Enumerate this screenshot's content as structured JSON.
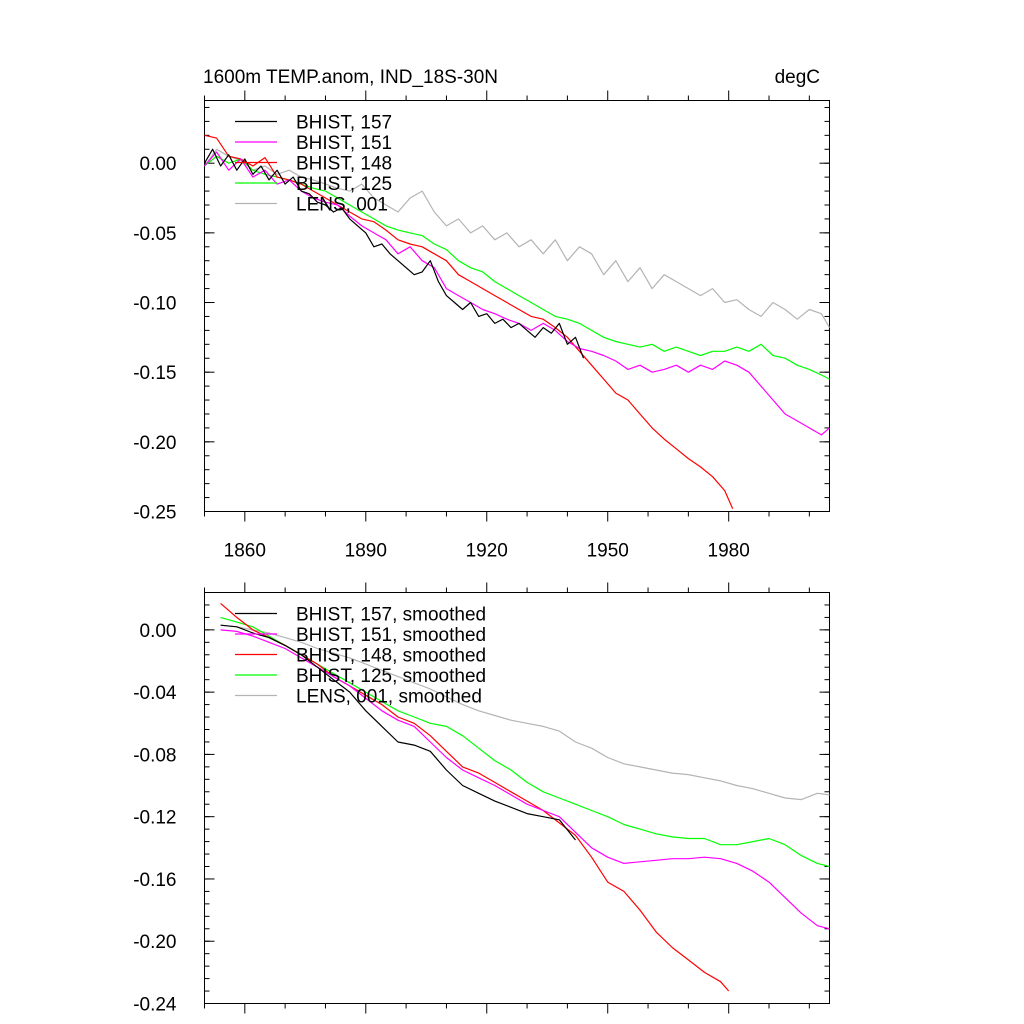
{
  "chart_data": [
    {
      "type": "line",
      "title": "1600m TEMP.anom, IND_18S-30N",
      "units": "degC",
      "xlim": [
        1850,
        2005
      ],
      "ylim": [
        -0.25,
        0.045
      ],
      "xticks": [
        1860,
        1890,
        1920,
        1950,
        1980
      ],
      "xtick_labels": [
        "1860",
        "1890",
        "1920",
        "1950",
        "1980"
      ],
      "yticks": [
        0.0,
        -0.05,
        -0.1,
        -0.15,
        -0.2,
        -0.25
      ],
      "ytick_labels": [
        "0.00",
        "-0.05",
        "-0.10",
        "-0.15",
        "-0.20",
        "-0.25"
      ],
      "legend_position": "top-left",
      "grid": false,
      "series": [
        {
          "name": "BHIST, 157",
          "color": "#000000",
          "x": [
            1850,
            1852,
            1854,
            1856,
            1858,
            1860,
            1862,
            1864,
            1866,
            1868,
            1870,
            1872,
            1874,
            1876,
            1878,
            1880,
            1882,
            1884,
            1886,
            1888,
            1890,
            1892,
            1894,
            1896,
            1898,
            1900,
            1902,
            1904,
            1906,
            1908,
            1910,
            1912,
            1914,
            1916,
            1918,
            1920,
            1922,
            1924,
            1926,
            1928,
            1930,
            1932,
            1934,
            1936,
            1938,
            1940,
            1942,
            1944
          ],
          "y": [
            0.0,
            0.01,
            -0.002,
            0.006,
            -0.005,
            0.003,
            -0.008,
            -0.002,
            -0.012,
            -0.005,
            -0.015,
            -0.01,
            -0.02,
            -0.022,
            -0.028,
            -0.03,
            -0.035,
            -0.032,
            -0.04,
            -0.045,
            -0.05,
            -0.06,
            -0.058,
            -0.065,
            -0.07,
            -0.075,
            -0.08,
            -0.078,
            -0.07,
            -0.085,
            -0.095,
            -0.1,
            -0.105,
            -0.1,
            -0.11,
            -0.108,
            -0.115,
            -0.112,
            -0.118,
            -0.115,
            -0.12,
            -0.125,
            -0.118,
            -0.122,
            -0.115,
            -0.13,
            -0.125,
            -0.14
          ]
        },
        {
          "name": "BHIST, 151",
          "color": "#ff00ff",
          "x": [
            1850,
            1853,
            1856,
            1859,
            1862,
            1865,
            1868,
            1871,
            1874,
            1877,
            1880,
            1883,
            1886,
            1889,
            1892,
            1895,
            1898,
            1901,
            1904,
            1907,
            1910,
            1913,
            1916,
            1919,
            1922,
            1925,
            1928,
            1931,
            1934,
            1937,
            1940,
            1943,
            1946,
            1949,
            1952,
            1955,
            1958,
            1961,
            1964,
            1967,
            1970,
            1973,
            1976,
            1979,
            1982,
            1985,
            1988,
            1991,
            1994,
            1997,
            2000,
            2003,
            2005
          ],
          "y": [
            -0.002,
            0.008,
            -0.005,
            0.003,
            -0.01,
            -0.005,
            -0.015,
            -0.012,
            -0.02,
            -0.025,
            -0.028,
            -0.03,
            -0.038,
            -0.045,
            -0.05,
            -0.055,
            -0.065,
            -0.06,
            -0.07,
            -0.075,
            -0.09,
            -0.095,
            -0.1,
            -0.105,
            -0.108,
            -0.112,
            -0.115,
            -0.12,
            -0.115,
            -0.12,
            -0.128,
            -0.133,
            -0.135,
            -0.138,
            -0.142,
            -0.148,
            -0.145,
            -0.15,
            -0.148,
            -0.145,
            -0.15,
            -0.145,
            -0.148,
            -0.142,
            -0.145,
            -0.15,
            -0.16,
            -0.17,
            -0.18,
            -0.185,
            -0.19,
            -0.195,
            -0.19
          ]
        },
        {
          "name": "BHIST, 148",
          "color": "#ff0000",
          "x": [
            1850,
            1853,
            1856,
            1859,
            1862,
            1865,
            1868,
            1871,
            1874,
            1877,
            1880,
            1883,
            1886,
            1889,
            1892,
            1895,
            1898,
            1901,
            1904,
            1907,
            1910,
            1913,
            1916,
            1919,
            1922,
            1925,
            1928,
            1931,
            1934,
            1937,
            1940,
            1943,
            1946,
            1949,
            1952,
            1955,
            1958,
            1961,
            1964,
            1967,
            1970,
            1973,
            1976,
            1979,
            1981
          ],
          "y": [
            0.02,
            0.018,
            0.005,
            0.003,
            -0.002,
            0.004,
            -0.01,
            -0.012,
            -0.015,
            -0.02,
            -0.025,
            -0.03,
            -0.035,
            -0.04,
            -0.042,
            -0.048,
            -0.055,
            -0.058,
            -0.06,
            -0.065,
            -0.07,
            -0.08,
            -0.085,
            -0.09,
            -0.095,
            -0.1,
            -0.105,
            -0.11,
            -0.112,
            -0.118,
            -0.125,
            -0.135,
            -0.145,
            -0.155,
            -0.165,
            -0.17,
            -0.18,
            -0.19,
            -0.198,
            -0.205,
            -0.212,
            -0.218,
            -0.225,
            -0.235,
            -0.248
          ]
        },
        {
          "name": "BHIST, 125",
          "color": "#00ff00",
          "x": [
            1850,
            1853,
            1856,
            1859,
            1862,
            1865,
            1868,
            1871,
            1874,
            1877,
            1880,
            1883,
            1886,
            1889,
            1892,
            1895,
            1898,
            1901,
            1904,
            1907,
            1910,
            1913,
            1916,
            1919,
            1922,
            1925,
            1928,
            1931,
            1934,
            1937,
            1940,
            1943,
            1946,
            1949,
            1952,
            1955,
            1958,
            1961,
            1964,
            1967,
            1970,
            1973,
            1976,
            1979,
            1982,
            1985,
            1988,
            1991,
            1994,
            1997,
            2000,
            2003,
            2005
          ],
          "y": [
            -0.002,
            0.005,
            0.0,
            0.003,
            -0.005,
            -0.008,
            -0.01,
            -0.012,
            -0.015,
            -0.018,
            -0.02,
            -0.025,
            -0.03,
            -0.035,
            -0.04,
            -0.045,
            -0.048,
            -0.05,
            -0.052,
            -0.058,
            -0.062,
            -0.07,
            -0.075,
            -0.078,
            -0.085,
            -0.09,
            -0.095,
            -0.1,
            -0.105,
            -0.11,
            -0.112,
            -0.115,
            -0.12,
            -0.125,
            -0.128,
            -0.13,
            -0.132,
            -0.13,
            -0.135,
            -0.132,
            -0.135,
            -0.138,
            -0.135,
            -0.135,
            -0.132,
            -0.135,
            -0.13,
            -0.138,
            -0.14,
            -0.145,
            -0.148,
            -0.152,
            -0.155
          ]
        },
        {
          "name": "LENS, 001",
          "color": "#b4b4b4",
          "x": [
            1850,
            1853,
            1856,
            1859,
            1862,
            1865,
            1868,
            1871,
            1874,
            1877,
            1880,
            1883,
            1886,
            1889,
            1892,
            1895,
            1898,
            1901,
            1904,
            1907,
            1910,
            1913,
            1916,
            1919,
            1922,
            1925,
            1928,
            1931,
            1934,
            1937,
            1940,
            1943,
            1946,
            1949,
            1952,
            1955,
            1958,
            1961,
            1964,
            1967,
            1970,
            1973,
            1976,
            1979,
            1982,
            1985,
            1988,
            1991,
            1994,
            1997,
            2000,
            2003,
            2005
          ],
          "y": [
            -0.002,
            0.01,
            0.005,
            0.002,
            -0.005,
            -0.002,
            -0.008,
            -0.005,
            -0.01,
            -0.012,
            -0.015,
            -0.018,
            -0.02,
            -0.015,
            -0.025,
            -0.03,
            -0.035,
            -0.025,
            -0.02,
            -0.035,
            -0.045,
            -0.04,
            -0.05,
            -0.045,
            -0.055,
            -0.05,
            -0.06,
            -0.055,
            -0.065,
            -0.055,
            -0.07,
            -0.06,
            -0.065,
            -0.08,
            -0.07,
            -0.085,
            -0.075,
            -0.09,
            -0.08,
            -0.085,
            -0.09,
            -0.095,
            -0.09,
            -0.1,
            -0.098,
            -0.105,
            -0.11,
            -0.1,
            -0.105,
            -0.112,
            -0.105,
            -0.108,
            -0.118
          ]
        }
      ]
    },
    {
      "type": "line",
      "xlim": [
        1850,
        2005
      ],
      "ylim": [
        -0.24,
        0.024
      ],
      "xticks": [
        1860,
        1890,
        1920,
        1950,
        1980
      ],
      "yticks": [
        0.0,
        -0.04,
        -0.08,
        -0.12,
        -0.16,
        -0.2,
        -0.24
      ],
      "ytick_labels": [
        "0.00",
        "-0.04",
        "-0.08",
        "-0.12",
        "-0.16",
        "-0.20",
        "-0.24"
      ],
      "legend_position": "top-left",
      "grid": false,
      "series": [
        {
          "name": "BHIST, 157, smoothed",
          "color": "#000000",
          "x": [
            1854,
            1858,
            1862,
            1866,
            1870,
            1874,
            1878,
            1882,
            1886,
            1890,
            1894,
            1898,
            1902,
            1906,
            1910,
            1914,
            1918,
            1922,
            1926,
            1930,
            1934,
            1938,
            1942
          ],
          "y": [
            0.003,
            0.002,
            -0.002,
            -0.005,
            -0.01,
            -0.016,
            -0.024,
            -0.032,
            -0.04,
            -0.052,
            -0.062,
            -0.072,
            -0.074,
            -0.078,
            -0.09,
            -0.1,
            -0.105,
            -0.11,
            -0.114,
            -0.118,
            -0.12,
            -0.122,
            -0.135
          ]
        },
        {
          "name": "BHIST, 151, smoothed",
          "color": "#ff00ff",
          "x": [
            1854,
            1858,
            1862,
            1866,
            1870,
            1874,
            1878,
            1882,
            1886,
            1890,
            1894,
            1898,
            1902,
            1906,
            1910,
            1914,
            1918,
            1922,
            1926,
            1930,
            1934,
            1938,
            1942,
            1946,
            1950,
            1954,
            1958,
            1962,
            1966,
            1970,
            1974,
            1978,
            1982,
            1986,
            1990,
            1994,
            1998,
            2002,
            2005
          ],
          "y": [
            0.0,
            -0.001,
            -0.004,
            -0.008,
            -0.012,
            -0.018,
            -0.024,
            -0.03,
            -0.036,
            -0.044,
            -0.052,
            -0.058,
            -0.062,
            -0.072,
            -0.082,
            -0.09,
            -0.095,
            -0.1,
            -0.106,
            -0.112,
            -0.116,
            -0.12,
            -0.13,
            -0.14,
            -0.146,
            -0.15,
            -0.149,
            -0.148,
            -0.147,
            -0.147,
            -0.146,
            -0.147,
            -0.15,
            -0.155,
            -0.162,
            -0.172,
            -0.182,
            -0.19,
            -0.192
          ]
        },
        {
          "name": "BHIST, 148, smoothed",
          "color": "#ff0000",
          "x": [
            1854,
            1858,
            1862,
            1866,
            1870,
            1874,
            1878,
            1882,
            1886,
            1890,
            1894,
            1898,
            1902,
            1906,
            1910,
            1914,
            1918,
            1922,
            1926,
            1930,
            1934,
            1938,
            1942,
            1946,
            1950,
            1954,
            1958,
            1962,
            1966,
            1970,
            1974,
            1978,
            1980
          ],
          "y": [
            0.017,
            0.008,
            0.0,
            -0.005,
            -0.01,
            -0.016,
            -0.022,
            -0.03,
            -0.036,
            -0.042,
            -0.048,
            -0.056,
            -0.06,
            -0.068,
            -0.078,
            -0.088,
            -0.092,
            -0.098,
            -0.104,
            -0.11,
            -0.116,
            -0.124,
            -0.132,
            -0.146,
            -0.162,
            -0.168,
            -0.18,
            -0.194,
            -0.204,
            -0.212,
            -0.22,
            -0.226,
            -0.232
          ]
        },
        {
          "name": "BHIST, 125, smoothed",
          "color": "#00ff00",
          "x": [
            1854,
            1858,
            1862,
            1866,
            1870,
            1874,
            1878,
            1882,
            1886,
            1890,
            1894,
            1898,
            1902,
            1906,
            1910,
            1914,
            1918,
            1922,
            1926,
            1930,
            1934,
            1938,
            1942,
            1946,
            1950,
            1954,
            1958,
            1962,
            1966,
            1970,
            1974,
            1978,
            1982,
            1986,
            1990,
            1994,
            1998,
            2002,
            2005
          ],
          "y": [
            0.008,
            0.005,
            0.002,
            -0.004,
            -0.01,
            -0.016,
            -0.022,
            -0.028,
            -0.034,
            -0.04,
            -0.046,
            -0.052,
            -0.056,
            -0.06,
            -0.062,
            -0.068,
            -0.076,
            -0.084,
            -0.09,
            -0.098,
            -0.104,
            -0.108,
            -0.112,
            -0.116,
            -0.12,
            -0.125,
            -0.128,
            -0.131,
            -0.133,
            -0.134,
            -0.134,
            -0.138,
            -0.138,
            -0.136,
            -0.134,
            -0.138,
            -0.145,
            -0.15,
            -0.152
          ]
        },
        {
          "name": "LENS, 001, smoothed",
          "color": "#b4b4b4",
          "x": [
            1854,
            1858,
            1862,
            1866,
            1870,
            1874,
            1878,
            1882,
            1886,
            1890,
            1894,
            1898,
            1902,
            1906,
            1910,
            1914,
            1918,
            1922,
            1926,
            1930,
            1934,
            1938,
            1942,
            1946,
            1950,
            1954,
            1958,
            1962,
            1966,
            1970,
            1974,
            1978,
            1982,
            1986,
            1990,
            1994,
            1998,
            2002,
            2005
          ],
          "y": [
            0.003,
            0.002,
            0.0,
            -0.002,
            -0.005,
            -0.008,
            -0.012,
            -0.015,
            -0.018,
            -0.022,
            -0.026,
            -0.03,
            -0.034,
            -0.038,
            -0.043,
            -0.048,
            -0.052,
            -0.055,
            -0.058,
            -0.06,
            -0.062,
            -0.065,
            -0.072,
            -0.076,
            -0.082,
            -0.086,
            -0.088,
            -0.09,
            -0.092,
            -0.093,
            -0.095,
            -0.097,
            -0.1,
            -0.102,
            -0.105,
            -0.108,
            -0.109,
            -0.105,
            -0.106
          ]
        }
      ]
    }
  ]
}
